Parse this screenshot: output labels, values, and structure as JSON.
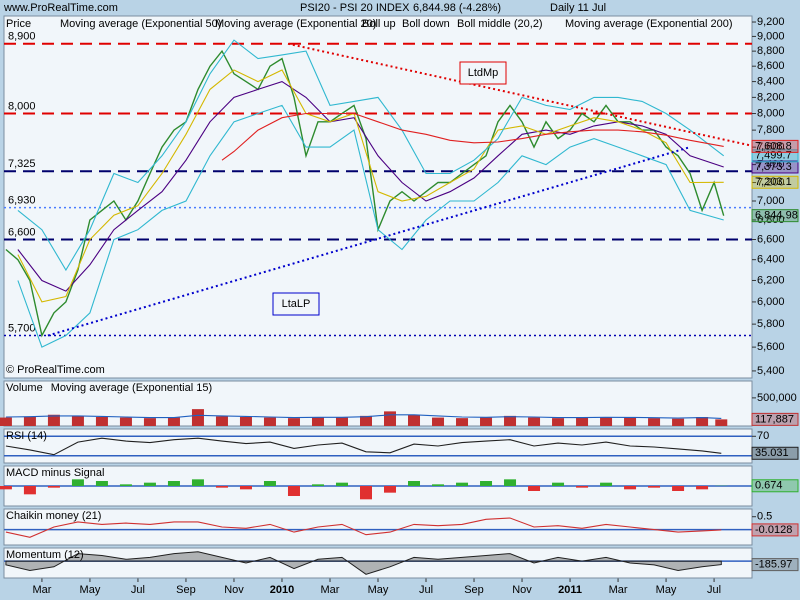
{
  "header": {
    "site": "www.ProRealTime.com",
    "instrument": "PSI20 - PSI 20 INDEX",
    "quote": "6,844.98 (-4.28%)",
    "period": "Daily  11 Jul",
    "copyright": "© ProRealTime.com"
  },
  "chart_data": [
    {
      "type": "line",
      "log": true,
      "xlim": [
        0.42,
        31.58
      ],
      "xticks": [
        {
          "value": 2,
          "label": "Mar"
        },
        {
          "value": 4,
          "label": "May"
        },
        {
          "value": 6,
          "label": "Jul"
        },
        {
          "value": 8,
          "label": "Sep"
        },
        {
          "value": 10,
          "label": "Nov"
        },
        {
          "value": 12,
          "label": "2010"
        },
        {
          "value": 14,
          "label": "Mar"
        },
        {
          "value": 16,
          "label": "May"
        },
        {
          "value": 18,
          "label": "Jul"
        },
        {
          "value": 20,
          "label": "Sep"
        },
        {
          "value": 22,
          "label": "Nov"
        },
        {
          "value": 24,
          "label": "2011"
        },
        {
          "value": 26,
          "label": "Mar"
        },
        {
          "value": 28,
          "label": "May"
        },
        {
          "value": 30,
          "label": "Jul"
        }
      ],
      "ylim": [
        5342,
        9285
      ],
      "yticks": [
        {
          "value": 5400,
          "label": "5,400"
        },
        {
          "value": 5600,
          "label": "5,600"
        },
        {
          "value": 5800,
          "label": "5,800"
        },
        {
          "value": 6000,
          "label": "6,000"
        },
        {
          "value": 6200,
          "label": "6,200"
        },
        {
          "value": 6400,
          "label": "6,400"
        },
        {
          "value": 6600,
          "label": "6,600"
        },
        {
          "value": 6800,
          "label": "6,800"
        },
        {
          "value": 7000,
          "label": "7,000"
        },
        {
          "value": 7200,
          "label": "7,200"
        },
        {
          "value": 7400,
          "label": "7,400"
        },
        {
          "value": 7600,
          "label": "7,600"
        },
        {
          "value": 7800,
          "label": "7,800"
        },
        {
          "value": 8000,
          "label": "8,000"
        },
        {
          "value": 8200,
          "label": "8,200"
        },
        {
          "value": 8400,
          "label": "8,400"
        },
        {
          "value": 8600,
          "label": "8,600"
        },
        {
          "value": 8800,
          "label": "8,800"
        },
        {
          "value": 9000,
          "label": "9,000"
        },
        {
          "value": 9200,
          "label": "9,200"
        }
      ],
      "levels": [
        {
          "value": 8900,
          "label": "8,900",
          "color": "#e00000",
          "style": "dash"
        },
        {
          "value": 8000,
          "label": "8,000",
          "color": "#e00000",
          "style": "dash"
        },
        {
          "value": 7325,
          "label": "7,325",
          "color": "#00006c",
          "style": "dash"
        },
        {
          "value": 6930,
          "label": "6,930",
          "color": "#4a7cff",
          "style": "dot"
        },
        {
          "value": 6600,
          "label": "6,600",
          "color": "#00006c",
          "style": "dash"
        },
        {
          "value": 5700,
          "label": "5,700",
          "color": "#0000b0",
          "style": "dot"
        }
      ],
      "trendlines": [
        {
          "name": "LtdMp",
          "x": [
            12.25,
            31.58
          ],
          "values": [
            8900,
            7616
          ],
          "color": "#e00000"
        },
        {
          "name": "LtaLP",
          "x": [
            2.25,
            29
          ],
          "values": [
            5700,
            7600
          ],
          "color": "#0000cc"
        }
      ],
      "series": [
        {
          "name": "Price",
          "color": "#2e8b2e",
          "last_label": "6,844.98",
          "x": [
            0.5,
            1,
            1.5,
            2,
            2.5,
            3,
            3.5,
            4,
            4.5,
            5,
            5.5,
            6,
            6.5,
            7,
            7.5,
            8,
            8.5,
            9,
            9.5,
            10,
            10.5,
            11,
            11.5,
            12,
            12.5,
            13,
            13.5,
            14,
            14.5,
            15,
            15.5,
            16,
            16.5,
            17,
            17.5,
            18,
            18.5,
            19,
            19.5,
            20,
            20.5,
            21,
            21.5,
            22,
            22.5,
            23,
            23.5,
            24,
            24.5,
            25,
            25.5,
            26,
            26.5,
            27,
            27.5,
            28,
            28.5,
            29,
            29.5,
            30,
            30.4
          ],
          "values": [
            6500,
            6400,
            6200,
            5700,
            5900,
            6000,
            6300,
            6800,
            6900,
            7000,
            6800,
            7000,
            7300,
            7600,
            7800,
            7900,
            8300,
            8600,
            8800,
            8500,
            8400,
            8300,
            8600,
            8700,
            8200,
            7500,
            7900,
            7900,
            8000,
            8100,
            7700,
            6700,
            7000,
            7100,
            7000,
            7100,
            7200,
            7200,
            7300,
            7400,
            7500,
            7900,
            8100,
            7900,
            7600,
            7900,
            7700,
            7800,
            8000,
            7900,
            8100,
            7900,
            7900,
            7800,
            7800,
            7600,
            7500,
            7300,
            6900,
            7200,
            6844.98
          ]
        },
        {
          "name": "Moving average (Exponential 50)",
          "color": "#4b0082",
          "last_label": "7,373.3",
          "x": [
            1,
            2,
            3,
            4,
            5,
            6,
            7,
            8,
            9,
            10,
            11,
            12,
            13,
            14,
            15,
            16,
            17,
            18,
            19,
            20,
            21,
            22,
            23,
            24,
            25,
            26,
            27,
            28,
            29,
            30.4
          ],
          "values": [
            6500,
            6200,
            6100,
            6350,
            6700,
            6900,
            7100,
            7450,
            7900,
            8200,
            8300,
            8400,
            8200,
            7900,
            7950,
            7500,
            7200,
            7000,
            7100,
            7250,
            7500,
            7750,
            7800,
            7750,
            7850,
            7900,
            7850,
            7750,
            7500,
            7373.3
          ]
        },
        {
          "name": "Moving average (Exponential 20)",
          "color": "#d4b800",
          "last_label": "7,203.1",
          "x": [
            1,
            2,
            3,
            4,
            5,
            6,
            7,
            8,
            9,
            10,
            11,
            12,
            13,
            14,
            15,
            16,
            17,
            18,
            19,
            20,
            21,
            22,
            23,
            24,
            25,
            26,
            27,
            28,
            29,
            30.4
          ],
          "values": [
            6450,
            6000,
            6050,
            6600,
            6850,
            6950,
            7300,
            7750,
            8300,
            8550,
            8400,
            8550,
            8000,
            7900,
            8000,
            7100,
            7000,
            7050,
            7200,
            7350,
            7800,
            7850,
            7750,
            7850,
            7950,
            7900,
            7800,
            7650,
            7200,
            7203.1
          ]
        },
        {
          "name": "Boll up",
          "color": "#30b8d0",
          "last_label": "7,499.7",
          "x": [
            1,
            2,
            3,
            4,
            5,
            6,
            7,
            8,
            9,
            10,
            11,
            12,
            13,
            14,
            15,
            16,
            17,
            18,
            19,
            20,
            21,
            22,
            23,
            24,
            25,
            26,
            27,
            28,
            29,
            30.4
          ],
          "values": [
            6900,
            6700,
            6300,
            6700,
            7300,
            7200,
            7500,
            7900,
            8500,
            8950,
            8700,
            8750,
            8800,
            8100,
            8150,
            8200,
            7800,
            7300,
            7300,
            7450,
            7700,
            8200,
            8100,
            8050,
            8200,
            8200,
            8150,
            8000,
            7800,
            7499.7
          ]
        },
        {
          "name": "Boll down",
          "color": "#30b8d0",
          "x": [
            1,
            2,
            3,
            4,
            5,
            6,
            7,
            8,
            9,
            10,
            11,
            12,
            13,
            14,
            15,
            16,
            17,
            18,
            19,
            20,
            21,
            22,
            23,
            24,
            25,
            26,
            27,
            28,
            29,
            30.4
          ],
          "values": [
            6200,
            5600,
            5700,
            5900,
            6600,
            6700,
            6900,
            7000,
            7500,
            7900,
            8000,
            8100,
            7600,
            7600,
            7800,
            6700,
            6500,
            6800,
            7000,
            7000,
            7200,
            7500,
            7400,
            7600,
            7700,
            7600,
            7500,
            7400,
            6900,
            6800
          ]
        },
        {
          "name": "Moving average (Exponential 200)",
          "color": "#e02020",
          "last_label": "7,608.8",
          "x": [
            9.5,
            10,
            11,
            12,
            13,
            14,
            15,
            16,
            17,
            18,
            19,
            20,
            21,
            22,
            23,
            24,
            25,
            26,
            27,
            28,
            29,
            30.4
          ],
          "values": [
            7450,
            7550,
            7800,
            7950,
            8000,
            8000,
            8000,
            7900,
            7800,
            7750,
            7680,
            7650,
            7660,
            7700,
            7750,
            7780,
            7800,
            7800,
            7780,
            7740,
            7680,
            7608.8
          ]
        }
      ],
      "boll_middle": "Boll middle (20,2)"
    },
    {
      "type": "bar",
      "xlim": [
        0.42,
        31.58
      ],
      "x": [
        0.5,
        1.5,
        2.5,
        3.5,
        4.5,
        5.5,
        6.5,
        7.5,
        8.5,
        9.5,
        10.5,
        11.5,
        12.5,
        13.5,
        14.5,
        15.5,
        16.5,
        17.5,
        18.5,
        19.5,
        20.5,
        21.5,
        22.5,
        23.5,
        24.5,
        25.5,
        26.5,
        27.5,
        28.5,
        29.5,
        30.3
      ],
      "ylim": [
        0,
        800000
      ],
      "yticks": [
        {
          "value": 500000,
          "label": "500,000"
        }
      ],
      "series": [
        {
          "name": "Volume",
          "color": "#c03030",
          "last_label": "117,887",
          "values": [
            150000,
            170000,
            200000,
            180000,
            160000,
            150000,
            140000,
            150000,
            300000,
            170000,
            160000,
            150000,
            140000,
            160000,
            150000,
            180000,
            260000,
            200000,
            150000,
            140000,
            150000,
            180000,
            150000,
            140000,
            150000,
            160000,
            150000,
            140000,
            130000,
            160000,
            117887
          ]
        },
        {
          "name": "Moving average (Exponential 15)",
          "type": "line",
          "color": "#2060c0",
          "values": [
            160000,
            165000,
            180000,
            180000,
            170000,
            160000,
            150000,
            150000,
            190000,
            180000,
            170000,
            160000,
            150000,
            155000,
            155000,
            165000,
            200000,
            200000,
            180000,
            160000,
            155000,
            165000,
            160000,
            150000,
            150000,
            155000,
            152000,
            148000,
            140000,
            150000,
            135000
          ]
        }
      ]
    },
    {
      "type": "line",
      "xlim": [
        0.42,
        31.58
      ],
      "x": [
        0.5,
        1.5,
        2.5,
        3.5,
        4.5,
        5.5,
        6.5,
        7.5,
        8.5,
        9.5,
        10.5,
        11.5,
        12.5,
        13.5,
        14.5,
        15.5,
        16.5,
        17.5,
        18.5,
        19.5,
        20.5,
        21.5,
        22.5,
        23.5,
        24.5,
        25.5,
        26.5,
        27.5,
        28.5,
        29.5,
        30.3
      ],
      "ylim": [
        15,
        85
      ],
      "yticks": [
        70
      ],
      "levels": [
        70,
        30
      ],
      "series": [
        {
          "name": "RSI (14)",
          "color": "#202020",
          "last_label": "35.031",
          "values": [
            50,
            42,
            32,
            58,
            66,
            60,
            57,
            63,
            66,
            60,
            55,
            58,
            45,
            52,
            56,
            38,
            36,
            54,
            50,
            57,
            60,
            63,
            50,
            56,
            52,
            58,
            50,
            48,
            44,
            40,
            35.031
          ]
        }
      ]
    },
    {
      "type": "bar",
      "xlim": [
        0.42,
        31.58
      ],
      "x": [
        0.5,
        1.5,
        2.5,
        3.5,
        4.5,
        5.5,
        6.5,
        7.5,
        8.5,
        9.5,
        10.5,
        11.5,
        12.5,
        13.5,
        14.5,
        15.5,
        16.5,
        17.5,
        18.5,
        19.5,
        20.5,
        21.5,
        22.5,
        23.5,
        24.5,
        25.5,
        26.5,
        27.5,
        28.5,
        29.5,
        30.3
      ],
      "ylim": [
        -60,
        60
      ],
      "levels": [
        0
      ],
      "series": [
        {
          "name": "MACD minus Signal",
          "color": "#30b030",
          "negative_color": "#e03030",
          "last_label": "0.674",
          "values": [
            -10,
            -25,
            -5,
            20,
            15,
            5,
            10,
            15,
            20,
            -5,
            -10,
            15,
            -30,
            5,
            10,
            -40,
            -20,
            15,
            5,
            10,
            15,
            20,
            -15,
            10,
            -5,
            10,
            -10,
            -5,
            -15,
            -10,
            0.674
          ]
        }
      ]
    },
    {
      "type": "line",
      "xlim": [
        0.42,
        31.58
      ],
      "x": [
        0.5,
        1.5,
        2.5,
        3.5,
        4.5,
        5.5,
        6.5,
        7.5,
        8.5,
        9.5,
        10.5,
        11.5,
        12.5,
        13.5,
        14.5,
        15.5,
        16.5,
        17.5,
        18.5,
        19.5,
        20.5,
        21.5,
        22.5,
        23.5,
        24.5,
        25.5,
        26.5,
        27.5,
        28.5,
        29.5,
        30.3
      ],
      "ylim": [
        -0.6,
        0.8
      ],
      "yticks": [
        0.5
      ],
      "levels": [
        0
      ],
      "series": [
        {
          "name": "Chaikin money (21)",
          "color": "#d03030",
          "last_label": "-0.0128",
          "values": [
            -0.1,
            -0.3,
            0.1,
            0.3,
            0.2,
            0.25,
            0.2,
            0.3,
            0.3,
            0.1,
            0.05,
            0.2,
            -0.1,
            0.1,
            0.2,
            -0.2,
            -0.1,
            0.2,
            0.15,
            0.2,
            0.4,
            0.45,
            0.1,
            0.15,
            0.05,
            0.2,
            0.1,
            0.0,
            -0.1,
            -0.05,
            -0.0128
          ]
        }
      ]
    },
    {
      "type": "area",
      "xlim": [
        0.42,
        31.58
      ],
      "x": [
        0.5,
        1.5,
        2.5,
        3.5,
        4.5,
        5.5,
        6.5,
        7.5,
        8.5,
        9.5,
        10.5,
        11.5,
        12.5,
        13.5,
        14.5,
        15.5,
        16.5,
        17.5,
        18.5,
        19.5,
        20.5,
        21.5,
        22.5,
        23.5,
        24.5,
        25.5,
        26.5,
        27.5,
        28.5,
        29.5,
        30.3
      ],
      "ylim": [
        -900,
        700
      ],
      "levels": [
        0
      ],
      "series": [
        {
          "name": "Momentum (12)",
          "color": "#606060",
          "last_label": "-185.97",
          "values": [
            -200,
            -500,
            -300,
            400,
            300,
            100,
            200,
            400,
            500,
            200,
            -100,
            200,
            -400,
            100,
            200,
            -700,
            -300,
            200,
            100,
            200,
            300,
            400,
            -100,
            200,
            0,
            200,
            -100,
            -200,
            -500,
            -300,
            -185.97
          ]
        }
      ]
    }
  ]
}
